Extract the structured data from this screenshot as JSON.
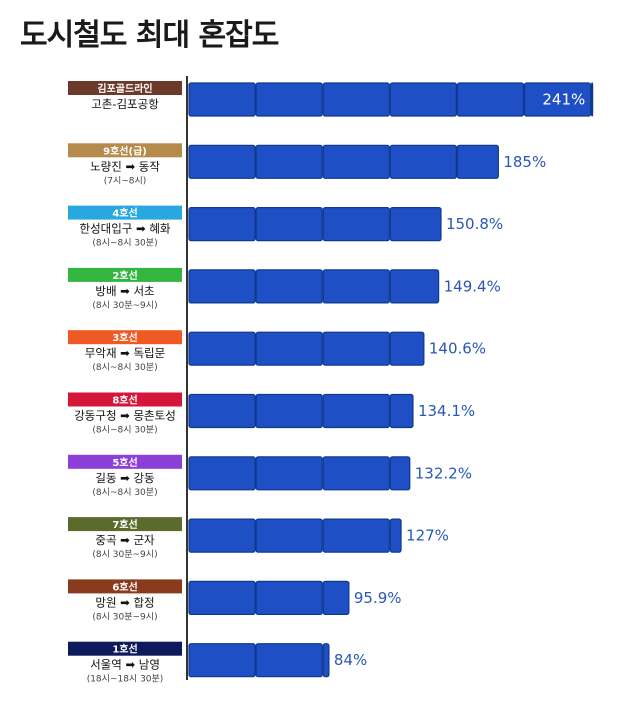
{
  "page_title": "도시철도 최대 혼잡도",
  "chart_data": {
    "type": "bar",
    "orientation": "horizontal",
    "title": "도시철도 최대 혼잡도",
    "unit": "%",
    "value_label_suffix": "%",
    "segment_size": 40,
    "xlim": [
      0,
      245
    ],
    "bar_color": "#1f4fc4",
    "items": [
      {
        "line": "김포골드라인",
        "route": "고촌-김포공항",
        "time": "",
        "value": 241,
        "value_label": "241%",
        "color": "#6b3a2a"
      },
      {
        "line": "9호선(급)",
        "route": "노량진 ➡ 동작",
        "time": "(7시~8시)",
        "value": 185,
        "value_label": "185%",
        "color": "#b58a4a"
      },
      {
        "line": "4호선",
        "route": "한성대입구 ➡ 혜화",
        "time": "(8시~8시 30분)",
        "value": 150.8,
        "value_label": "150.8%",
        "color": "#29a8e0"
      },
      {
        "line": "2호선",
        "route": "방배 ➡ 서초",
        "time": "(8시 30분~9시)",
        "value": 149.4,
        "value_label": "149.4%",
        "color": "#33b540"
      },
      {
        "line": "3호선",
        "route": "무악재 ➡ 독립문",
        "time": "(8시~8시 30분)",
        "value": 140.6,
        "value_label": "140.6%",
        "color": "#ef5a24"
      },
      {
        "line": "8호선",
        "route": "강동구청 ➡ 몽촌토성",
        "time": "(8시~8시 30분)",
        "value": 134.1,
        "value_label": "134.1%",
        "color": "#d4163a"
      },
      {
        "line": "5호선",
        "route": "길동 ➡ 강동",
        "time": "(8시~8시 30분)",
        "value": 132.2,
        "value_label": "132.2%",
        "color": "#8b3fd6"
      },
      {
        "line": "7호선",
        "route": "중곡 ➡ 군자",
        "time": "(8시 30분~9시)",
        "value": 127,
        "value_label": "127%",
        "color": "#5a6b2c"
      },
      {
        "line": "6호선",
        "route": "망원 ➡ 합정",
        "time": "(8시 30분~9시)",
        "value": 95.9,
        "value_label": "95.9%",
        "color": "#8a3b1e"
      },
      {
        "line": "1호선",
        "route": "서울역 ➡ 남영",
        "time": "(18시~18시 30분)",
        "value": 84,
        "value_label": "84%",
        "color": "#0d1a5c"
      }
    ]
  }
}
